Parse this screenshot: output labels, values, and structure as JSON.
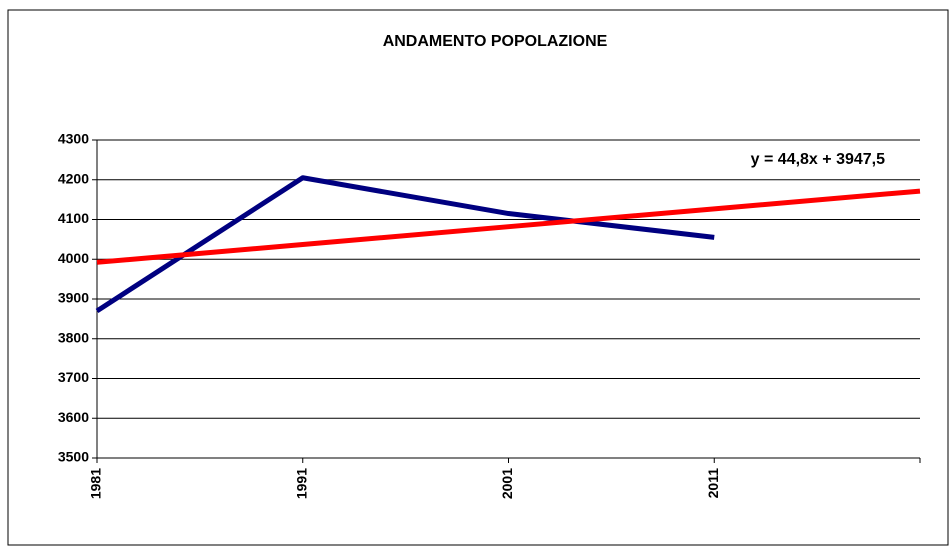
{
  "chart_data": {
    "type": "line",
    "title": "ANDAMENTO POPOLAZIONE",
    "categories": [
      "1981",
      "1991",
      "2001",
      "2011",
      null
    ],
    "series": [
      {
        "color": "#000080",
        "values": [
          3870,
          4205,
          4115,
          4055,
          null
        ]
      },
      {
        "color": "#ff0000",
        "values": [
          3992.3,
          4037.1,
          4081.9,
          4126.7,
          4171.5
        ]
      }
    ],
    "annotation": "y = 44,8x + 3947,5",
    "ylim": [
      3500,
      4300
    ],
    "yticks": [
      3500,
      3600,
      3700,
      3800,
      3900,
      4000,
      4100,
      4200,
      4300
    ],
    "grid": true
  }
}
